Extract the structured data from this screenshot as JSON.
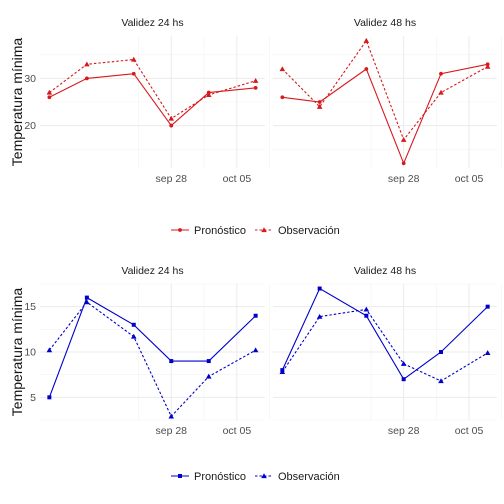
{
  "x_ticks": [
    {
      "label": "sep 28",
      "day": 14
    },
    {
      "label": "oct 05",
      "day": 21
    }
  ],
  "rows": [
    {
      "id": "top",
      "color": "#d7191c",
      "marker": "point",
      "ylabel": "Temperatura mínima",
      "ylim": [
        11,
        39
      ],
      "yticks": [
        20,
        30
      ],
      "legend": {
        "pronostico": "Pronóstico",
        "observacion": "Observación"
      },
      "panels": [
        {
          "title": "Validez 24 hs",
          "x_days": [
            1,
            5,
            10,
            14,
            18,
            23
          ],
          "chart_data": {
            "type": "line",
            "x_dates": [
              "sep 15",
              "sep 19",
              "sep 24",
              "sep 28",
              "oct 02",
              "oct 07"
            ],
            "series": [
              {
                "name": "Pronóstico",
                "values": [
                  26,
                  30,
                  31,
                  20,
                  27,
                  28
                ]
              },
              {
                "name": "Observación",
                "values": [
                  27,
                  33,
                  34,
                  21.5,
                  26.5,
                  29.5
                ]
              }
            ]
          }
        },
        {
          "title": "Validez 48 hs",
          "x_days": [
            1,
            5,
            10,
            14,
            18,
            23
          ],
          "chart_data": {
            "type": "line",
            "x_dates": [
              "sep 15",
              "sep 19",
              "sep 24",
              "sep 28",
              "oct 02",
              "oct 07"
            ],
            "series": [
              {
                "name": "Pronóstico",
                "values": [
                  26,
                  25,
                  32,
                  12,
                  31,
                  33
                ]
              },
              {
                "name": "Observación",
                "values": [
                  32,
                  24,
                  38,
                  17,
                  27,
                  32.5
                ]
              }
            ]
          }
        }
      ]
    },
    {
      "id": "bottom",
      "color": "#0000cc",
      "marker": "square",
      "ylabel": "Temperatura mínima",
      "ylim": [
        2.5,
        17.5
      ],
      "yticks": [
        5,
        10,
        15
      ],
      "legend": {
        "pronostico": "Pronóstico",
        "observacion": "Observación"
      },
      "panels": [
        {
          "title": "Validez 24 hs",
          "x_days": [
            1,
            5,
            10,
            14,
            18,
            23
          ],
          "chart_data": {
            "type": "line",
            "x_dates": [
              "sep 15",
              "sep 19",
              "sep 24",
              "sep 28",
              "oct 02",
              "oct 07"
            ],
            "series": [
              {
                "name": "Pronóstico",
                "values": [
                  5,
                  16,
                  13,
                  9,
                  9,
                  14
                ]
              },
              {
                "name": "Observación",
                "values": [
                  10.2,
                  15.5,
                  11.7,
                  2.9,
                  7.3,
                  10.2
                ]
              }
            ]
          }
        },
        {
          "title": "Validez 48 hs",
          "x_days": [
            1,
            5,
            10,
            14,
            18,
            23
          ],
          "chart_data": {
            "type": "line",
            "x_dates": [
              "sep 15",
              "sep 19",
              "sep 24",
              "sep 28",
              "oct 02",
              "oct 07"
            ],
            "series": [
              {
                "name": "Pronóstico",
                "values": [
                  8,
                  17,
                  14,
                  7,
                  10,
                  15
                ]
              },
              {
                "name": "Observación",
                "values": [
                  7.8,
                  13.9,
                  14.7,
                  8.7,
                  6.8,
                  9.9
                ]
              }
            ]
          }
        }
      ]
    }
  ]
}
